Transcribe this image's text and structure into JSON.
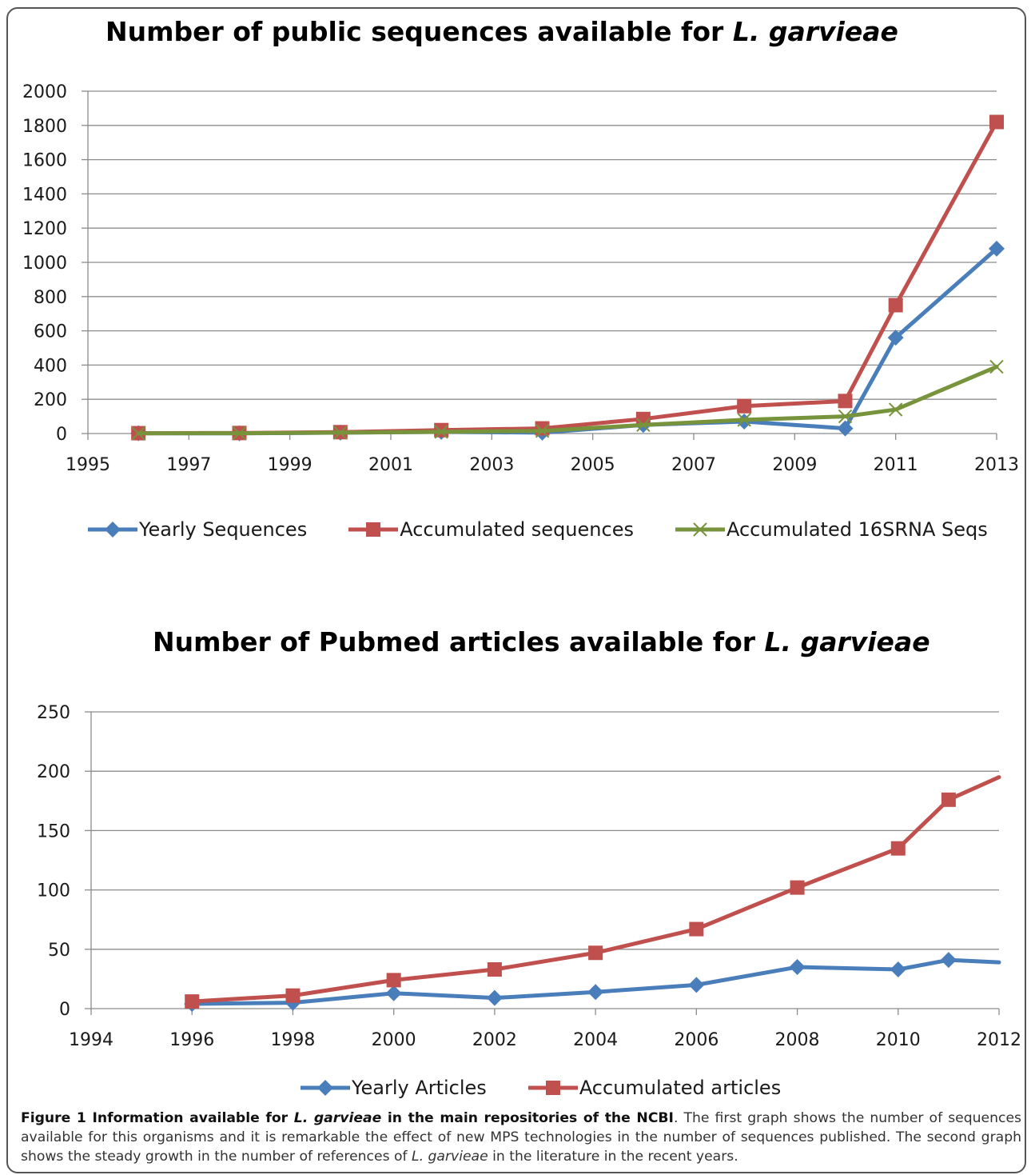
{
  "charts": {
    "top": {
      "title_prefix": "Number of public sequences available for ",
      "title_species": "L. garvieae"
    },
    "bottom": {
      "title_prefix": "Number of Pubmed articles available for ",
      "title_species": "L. garvieae"
    }
  },
  "caption": {
    "label": "Figure 1",
    "bold_1": " Information available for ",
    "bold_species": "L. garvieae",
    "bold_2": " in the main repositories of the NCBI",
    "text_1": ". The first graph shows the number of sequences available for this organisms and it is remarkable the effect of new MPS technologies in the number of sequences published. The second graph shows the steady growth in the number of references of ",
    "text_species": "L. garvieae",
    "text_2": " in the literature in the recent years."
  },
  "chart_data": [
    {
      "type": "line",
      "title": "Number of public sequences available for L. garvieae",
      "xlabel": "",
      "ylabel": "",
      "xlim": [
        1995,
        2013
      ],
      "ylim": [
        0,
        2000
      ],
      "x_ticks": [
        "1995",
        "1997",
        "1999",
        "2001",
        "2003",
        "2005",
        "2007",
        "2009",
        "2011",
        "2013"
      ],
      "y_ticks": [
        "0",
        "200",
        "400",
        "600",
        "800",
        "1000",
        "1200",
        "1400",
        "1600",
        "1800",
        "2000"
      ],
      "grid": true,
      "legend_position": "bottom",
      "series": [
        {
          "name": "Yearly Sequences",
          "color": "#4a7ebb",
          "marker": "diamond",
          "x": [
            1996,
            1998,
            2000,
            2002,
            2004,
            2006,
            2008,
            2010,
            2011,
            2013
          ],
          "y": [
            2,
            1,
            5,
            10,
            5,
            50,
            70,
            30,
            560,
            1080
          ]
        },
        {
          "name": "Accumulated sequences",
          "color": "#c0504d",
          "marker": "square",
          "x": [
            1996,
            1998,
            2000,
            2002,
            2004,
            2006,
            2008,
            2010,
            2011,
            2013
          ],
          "y": [
            2,
            3,
            8,
            20,
            30,
            85,
            160,
            190,
            750,
            1820
          ]
        },
        {
          "name": "Accumulated 16SRNA Seqs",
          "color": "#77933c",
          "marker": "x",
          "x": [
            1996,
            1998,
            2000,
            2002,
            2004,
            2006,
            2008,
            2010,
            2011,
            2013
          ],
          "y": [
            1,
            2,
            5,
            10,
            15,
            50,
            80,
            100,
            140,
            390
          ]
        }
      ]
    },
    {
      "type": "line",
      "title": "Number of Pubmed articles available for L. garvieae",
      "xlabel": "",
      "ylabel": "",
      "xlim": [
        1994,
        2012
      ],
      "ylim": [
        0,
        250
      ],
      "x_ticks": [
        "1994",
        "1996",
        "1998",
        "2000",
        "2002",
        "2004",
        "2006",
        "2008",
        "2010",
        "2012"
      ],
      "y_ticks": [
        "0",
        "50",
        "100",
        "150",
        "200",
        "250"
      ],
      "grid": true,
      "legend_position": "bottom",
      "series": [
        {
          "name": "Yearly Articles",
          "color": "#4a7ebb",
          "marker": "diamond",
          "x": [
            1996,
            1998,
            2000,
            2002,
            2004,
            2006,
            2008,
            2010,
            2011,
            2012
          ],
          "y": [
            4,
            5,
            13,
            9,
            14,
            20,
            35,
            33,
            41,
            39
          ],
          "marker_last": false
        },
        {
          "name": "Accumulated articles",
          "color": "#c0504d",
          "marker": "square",
          "x": [
            1996,
            1998,
            2000,
            2002,
            2004,
            2006,
            2008,
            2010,
            2011,
            2012
          ],
          "y": [
            6,
            11,
            24,
            33,
            47,
            67,
            102,
            135,
            176,
            195
          ],
          "marker_last": false
        }
      ]
    }
  ]
}
